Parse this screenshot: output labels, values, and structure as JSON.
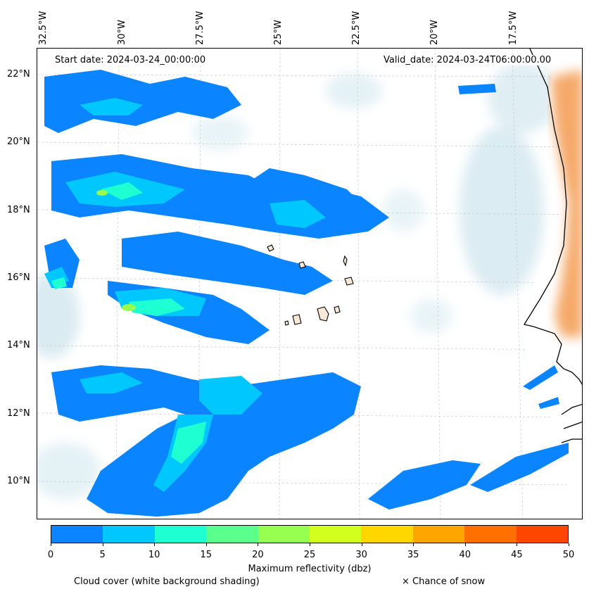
{
  "header": {
    "start_date": "Start date: 2024-03-24_00:00:00",
    "valid_date": "Valid_date: 2024-03-24T06:00:00.00"
  },
  "axes": {
    "longitude_labels": [
      "32.5°W",
      "30°W",
      "27.5°W",
      "25°W",
      "22.5°W",
      "20°W",
      "17.5°W"
    ],
    "latitude_labels": [
      "22°N",
      "20°N",
      "18°N",
      "16°N",
      "14°N",
      "12°N",
      "10°N"
    ]
  },
  "colorbar": {
    "label": "Maximum reflectivity (dbz)",
    "ticks": [
      "0",
      "5",
      "10",
      "15",
      "20",
      "25",
      "30",
      "35",
      "40",
      "45",
      "50"
    ],
    "colors": [
      "#0a84ff",
      "#00c8ff",
      "#1effd2",
      "#5aff8c",
      "#96ff50",
      "#d2ff1e",
      "#ffd700",
      "#ffa500",
      "#ff7000",
      "#ff4600"
    ]
  },
  "footer": {
    "cloud_cover": "Cloud cover (white background shading)",
    "snow": "× Chance of snow"
  },
  "colors": {
    "land": "#f4a05a",
    "cloud_shade": "#cfe6ee",
    "coast": "#000000"
  }
}
